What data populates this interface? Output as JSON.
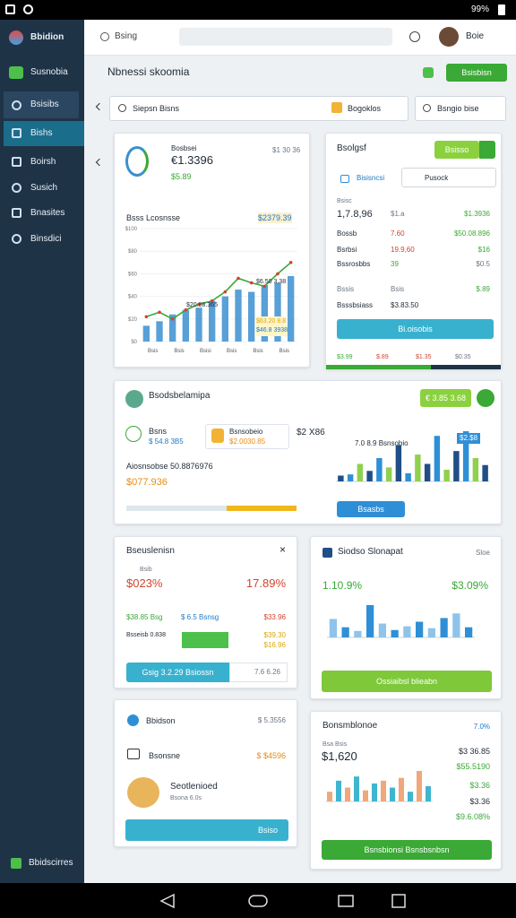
{
  "status_bar": {
    "battery": "99%"
  },
  "sidebar": {
    "brand": "Bbidion",
    "items": [
      "Susnobia",
      "Bsisibs",
      "Bishs",
      "Boirsh",
      "Susich",
      "Bnasites",
      "Binsdici"
    ],
    "footer": "Bbidscirres"
  },
  "topbar": {
    "search": "Bsing",
    "user": "Boie"
  },
  "page": {
    "title": "Nbnessi skoomia",
    "action": "Bsisbisn",
    "search": "Siepsn Bisns",
    "filter": "Bogoklos",
    "sort": "Bsngio bise"
  },
  "cards": [
    {
      "label": "Bosbsei",
      "meta": "$1 30 36",
      "value": "€1.3396",
      "sub": "$5.89",
      "chart_title": "Bsss Lcosnsse",
      "badge": "$2379.39",
      "note_1": "$6.50 3,38",
      "note_2": "$20.88.365",
      "note_3": "$63.20 8.8",
      "note_4": "$46.8 3938",
      "chart": {
        "type": "combo",
        "line": [
          22,
          26,
          20,
          28,
          33,
          36,
          44,
          56,
          52,
          49,
          60,
          70
        ],
        "bars": [
          14,
          18,
          24,
          28,
          30,
          36,
          40,
          46,
          44,
          50,
          52,
          58
        ],
        "line_color": "#3aa935",
        "bar_color": "#3b8fd0",
        "point_color": "#d2452e",
        "ylim": [
          0,
          100
        ],
        "yticks": [
          {
            "value": 0,
            "label": "$0"
          },
          {
            "value": 20,
            "label": "$20"
          },
          {
            "value": 40,
            "label": "$40"
          },
          {
            "value": 60,
            "label": "$60"
          },
          {
            "value": 80,
            "label": "$80"
          },
          {
            "value": 100,
            "label": "$100"
          }
        ],
        "x_labels": [
          "Bsis",
          "Bsis",
          "Bsisi",
          "Bsis",
          "Bsis",
          "Bsis"
        ]
      }
    },
    {
      "title": "Bsolgsf",
      "button": "Bsisso",
      "dropdown_1": "Bisisncsi",
      "dropdown_2": "Pusock",
      "caption": "Bsisc",
      "rows": [
        [
          "1,7.8,96",
          "$1.a",
          "$1.3936"
        ],
        [
          "Bossb",
          "7.60",
          "$50.08.896"
        ],
        [
          "Bsrbsi",
          "19.9,60",
          "$16"
        ],
        [
          "Bssrosbbs",
          "39",
          "$0.5"
        ],
        [
          "Bssis",
          "Bsis",
          "$.89"
        ],
        [
          "Bsssbsiass",
          "$3.83.50",
          ""
        ]
      ],
      "cta": "Bi.oisobis",
      "footer": [
        "$3.99",
        "$.89",
        "$1.35",
        "$0.35"
      ]
    },
    {
      "title": "Bsodsbelamipa",
      "button": "€ 3.85 3.68",
      "item_1": "Bsns",
      "item_1_value": "$ 54.8 3B5",
      "item_2": "Bsnsobeio",
      "item_2_value": "$2.0030.85",
      "item_3": "$2 X86",
      "item_4": "7.0 8.9 Bsnsobio",
      "summary": "Aiosnsobse 50.8876976",
      "summary_value": "$077.936",
      "badge": "$2.$8",
      "cta": "Bsasbs",
      "chart": {
        "type": "bar",
        "values": [
          10,
          12,
          30,
          18,
          40,
          24,
          62,
          14,
          46,
          30,
          78,
          20,
          52,
          86,
          40,
          28
        ],
        "colors": [
          "#1f4f86",
          "#2f8fd6",
          "#8fd14f"
        ]
      }
    },
    {
      "title": "Bseuslenisn",
      "caption": "Bsib",
      "value_left": "$023%",
      "value_right": "17.89%",
      "row_1": "$38.85 Bsg",
      "row_2": "$ 6.5 Bsnsg",
      "row_3": "$33.96",
      "row_4": "Bsseisb 0.838",
      "row_5": "$39.30",
      "row_6": "$16.96",
      "cta": "Gsig 3.2.29 Bsiossn",
      "cta_note": "7.6 6.26"
    },
    {
      "title": "Siodso Slonapat",
      "meta": "Sloe",
      "value_left": "1.10.9%",
      "value_right": "$3.09%",
      "cta": "Ossiaibsl blieabn",
      "chart": {
        "type": "bar",
        "values": [
          40,
          22,
          14,
          70,
          30,
          16,
          24,
          34,
          20,
          42,
          52,
          22
        ],
        "colors": [
          "#8fc3ea",
          "#2f8fd6"
        ]
      }
    },
    {
      "title": "Bbidson",
      "value": "$ 5.3556",
      "item": "Bsonsne",
      "item_value": "$ $4596",
      "person": "Seotlenioed",
      "person_note": "Bsona 6.0s",
      "cta": "Bsiso"
    },
    {
      "title": "Bonsmblonoe",
      "meta": "7.0%",
      "caption": "Bsa Bsis",
      "value": "$1,620",
      "side": [
        "$3 36.85",
        "$55.5190",
        "$3.36",
        "$3.36",
        "$9.6.08%"
      ],
      "cta": "Bsnsbionsi Bsnsbsnbsn",
      "chart": {
        "type": "bar",
        "values": [
          14,
          30,
          20,
          36,
          16,
          26,
          30,
          20,
          34,
          14,
          44,
          22
        ],
        "colors": [
          "#f0a77a",
          "#3fb6cf"
        ]
      }
    }
  ]
}
